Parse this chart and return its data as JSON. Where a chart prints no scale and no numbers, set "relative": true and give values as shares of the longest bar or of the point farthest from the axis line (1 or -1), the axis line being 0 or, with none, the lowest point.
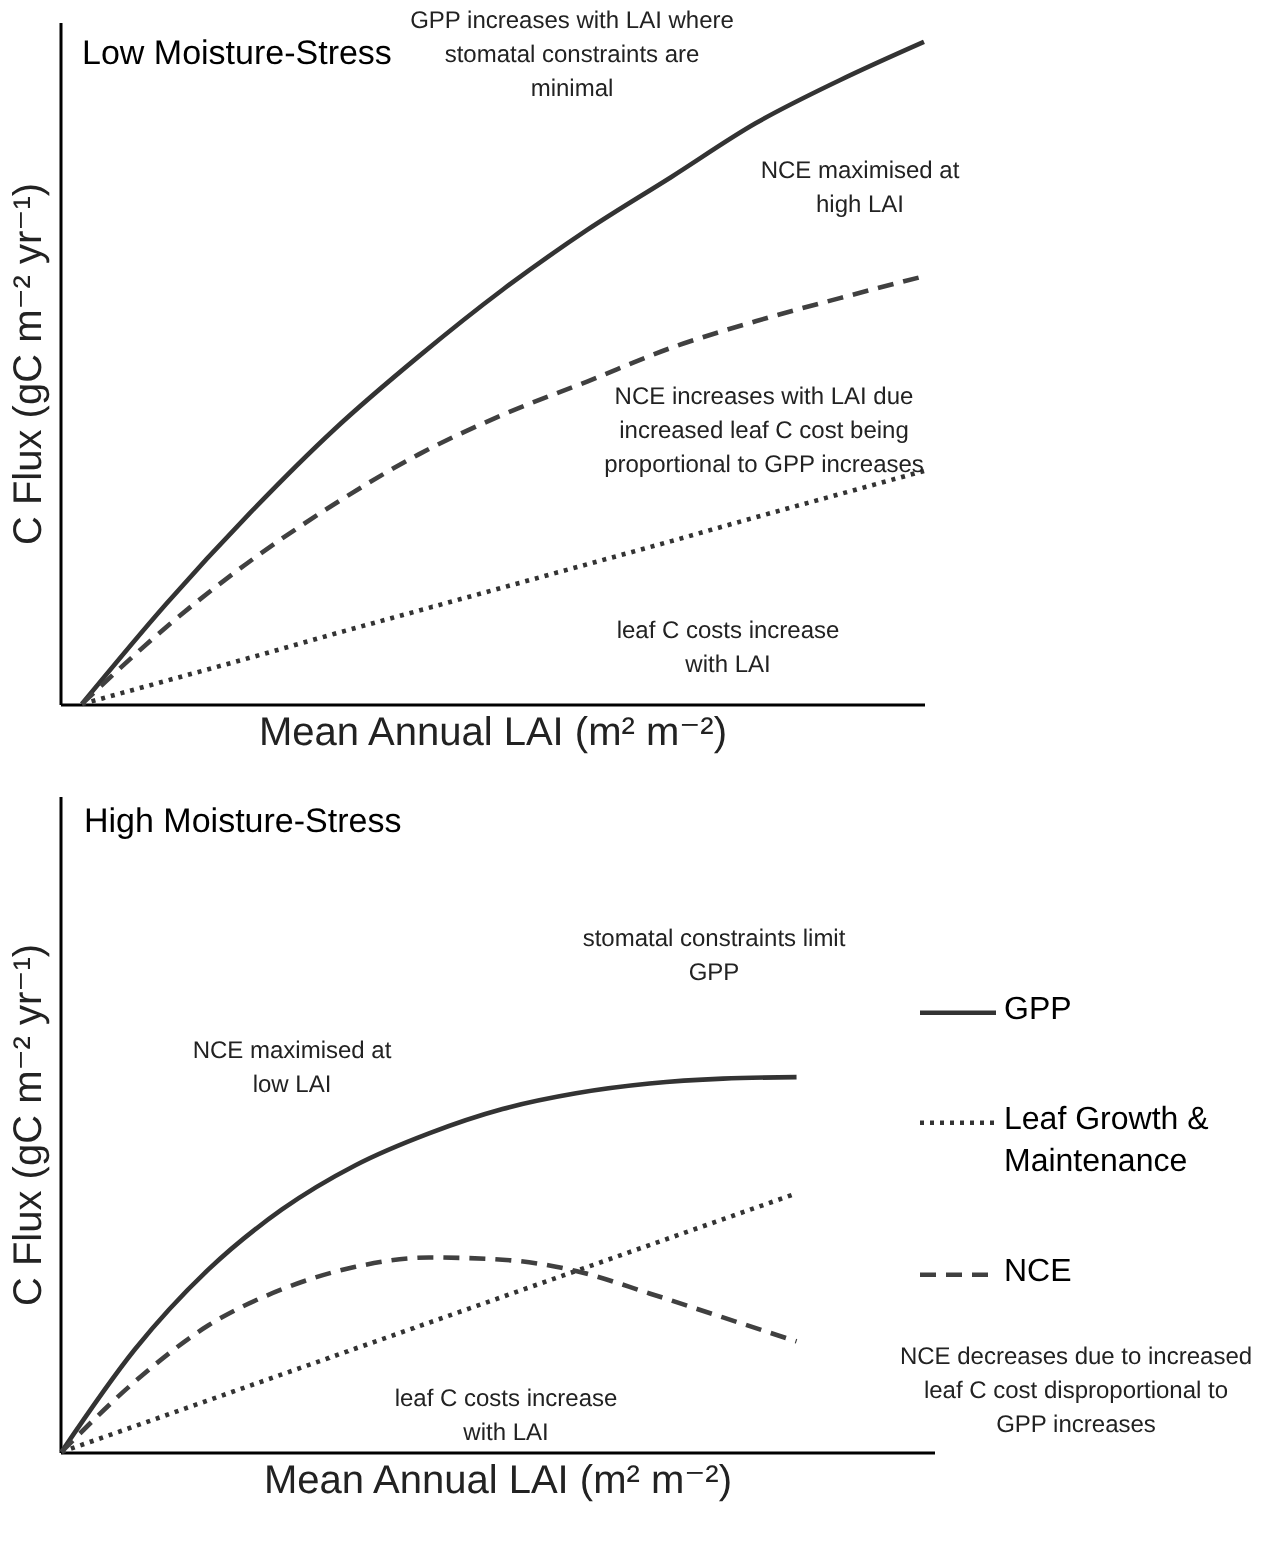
{
  "chart_data": [
    {
      "type": "line",
      "title": "Low Moisture-Stress",
      "xlabel": "Mean Annual LAI (m² m⁻²)",
      "ylabel": "C Flux (gC m⁻² yr⁻¹)",
      "relative": true,
      "categories": [
        null,
        null,
        null,
        null,
        null,
        null,
        null,
        null,
        null,
        null,
        null
      ],
      "series": [
        {
          "color": "#333333",
          "line_style": "solid",
          "values": [
            0,
            0.151,
            0.289,
            0.415,
            0.525,
            0.626,
            0.716,
            0.796,
            0.877,
            0.942,
            1
          ]
        },
        {
          "color": "#333333",
          "line_style": "dotted",
          "values": [
            0,
            0.035,
            0.07,
            0.106,
            0.141,
            0.176,
            0.211,
            0.246,
            0.282,
            0.317,
            0.352
          ]
        },
        {
          "color": "#404040",
          "line_style": "dashed",
          "values": [
            0,
            0.116,
            0.216,
            0.302,
            0.377,
            0.437,
            0.487,
            0.538,
            0.578,
            0.613,
            0.646
          ]
        }
      ],
      "annotations": [
        "GPP increases with LAI where stomatal constraints are minimal",
        "NCE maximised at high LAI",
        "NCE increases with LAI due increased leaf C cost being proportional to GPP increases",
        "leaf C costs increase with LAI"
      ]
    },
    {
      "type": "line",
      "title": "High Moisture-Stress",
      "xlabel": "Mean Annual LAI (m² m⁻²)",
      "ylabel": "C Flux (gC m⁻² yr⁻¹)",
      "relative": true,
      "legend": "right",
      "categories": [
        null,
        null,
        null,
        null,
        null,
        null,
        null,
        null,
        null,
        null,
        null
      ],
      "series": [
        {
          "name": "GPP",
          "color": "#333333",
          "line_style": "solid",
          "values": [
            0,
            0.274,
            0.487,
            0.647,
            0.765,
            0.85,
            0.915,
            0.957,
            0.983,
            0.996,
            1
          ]
        },
        {
          "name": "Leaf Growth & Maintenance",
          "color": "#333333",
          "line_style": "dotted",
          "values": [
            0,
            0.069,
            0.138,
            0.207,
            0.276,
            0.345,
            0.414,
            0.483,
            0.552,
            0.621,
            0.69
          ]
        },
        {
          "name": "NCE",
          "color": "#404040",
          "line_style": "dashed",
          "values": [
            0,
            0.188,
            0.338,
            0.434,
            0.494,
            0.519,
            0.513,
            0.483,
            0.423,
            0.359,
            0.295
          ]
        }
      ],
      "annotations": [
        "stomatal constraints limit GPP",
        "NCE maximised at low LAI",
        "leaf C costs increase with LAI",
        "NCE decreases due to increased leaf C cost disproportional to GPP increases"
      ]
    }
  ]
}
